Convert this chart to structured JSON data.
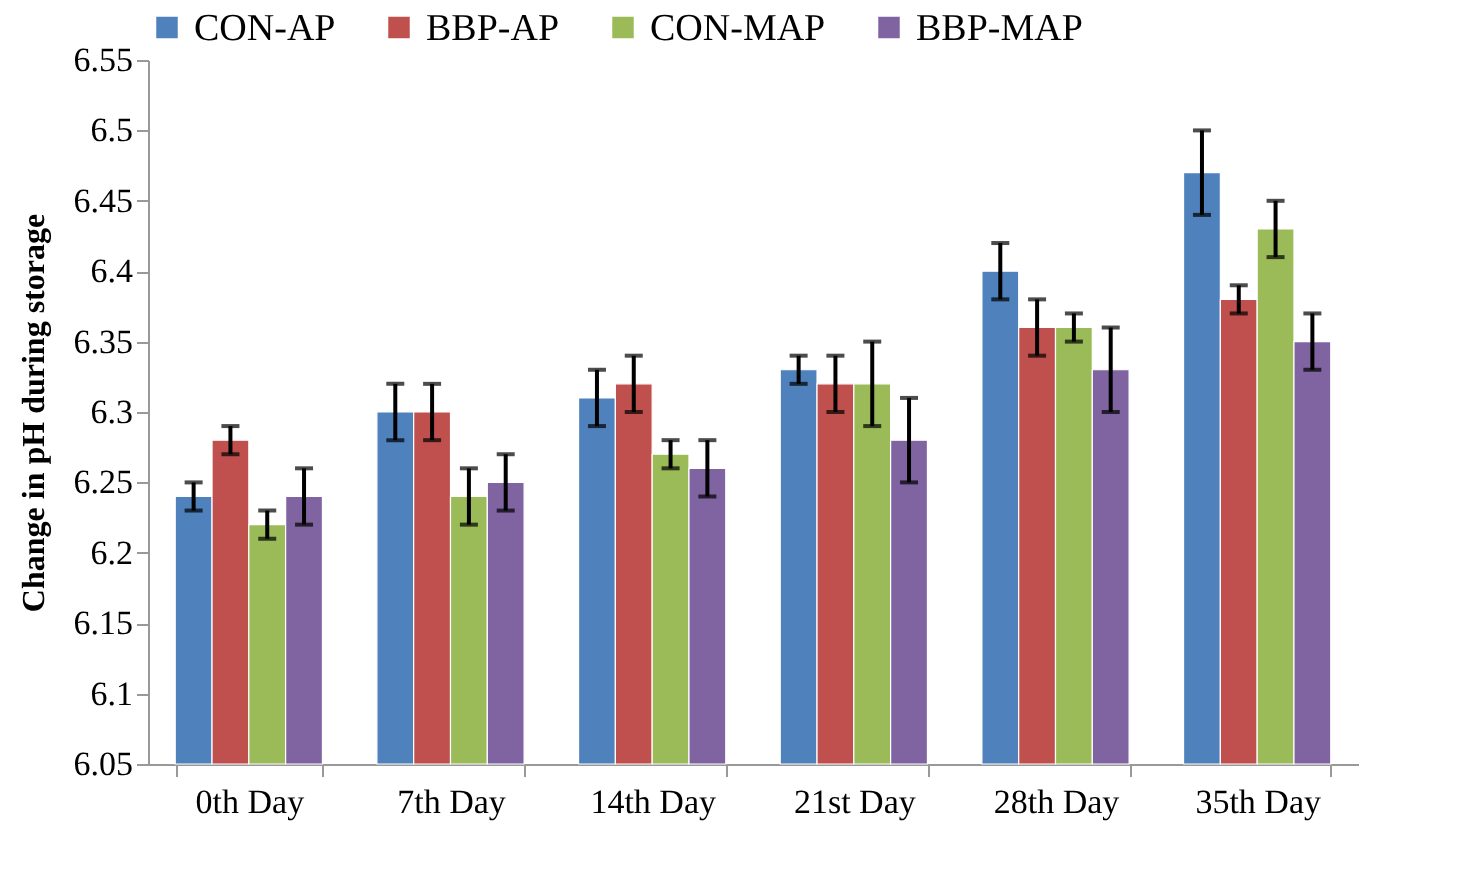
{
  "chart_data": {
    "type": "bar",
    "ylabel": "Change in pH during storage",
    "categories": [
      "0th Day",
      "7th Day",
      "14th Day",
      "21st Day",
      "28th Day",
      "35th Day"
    ],
    "series": [
      {
        "name": "CON-AP",
        "color": "#4f81bd",
        "values": [
          6.24,
          6.3,
          6.31,
          6.33,
          6.4,
          6.47
        ],
        "errors": [
          0.01,
          0.02,
          0.02,
          0.01,
          0.02,
          0.03
        ]
      },
      {
        "name": "BBP-AP",
        "color": "#c0504d",
        "values": [
          6.28,
          6.3,
          6.32,
          6.32,
          6.36,
          6.38
        ],
        "errors": [
          0.01,
          0.02,
          0.02,
          0.02,
          0.02,
          0.01
        ]
      },
      {
        "name": "CON-MAP",
        "color": "#9bbb59",
        "values": [
          6.22,
          6.24,
          6.27,
          6.32,
          6.36,
          6.43
        ],
        "errors": [
          0.01,
          0.02,
          0.01,
          0.03,
          0.01,
          0.02
        ]
      },
      {
        "name": "BBP-MAP",
        "color": "#8064a2",
        "values": [
          6.24,
          6.25,
          6.26,
          6.28,
          6.33,
          6.35
        ],
        "errors": [
          0.02,
          0.02,
          0.02,
          0.03,
          0.03,
          0.02
        ]
      }
    ],
    "ylim": [
      6.05,
      6.55
    ],
    "yticks": [
      6.05,
      6.1,
      6.15,
      6.2,
      6.25,
      6.3,
      6.35,
      6.4,
      6.45,
      6.5,
      6.55
    ],
    "grid": false,
    "legend": "top"
  }
}
